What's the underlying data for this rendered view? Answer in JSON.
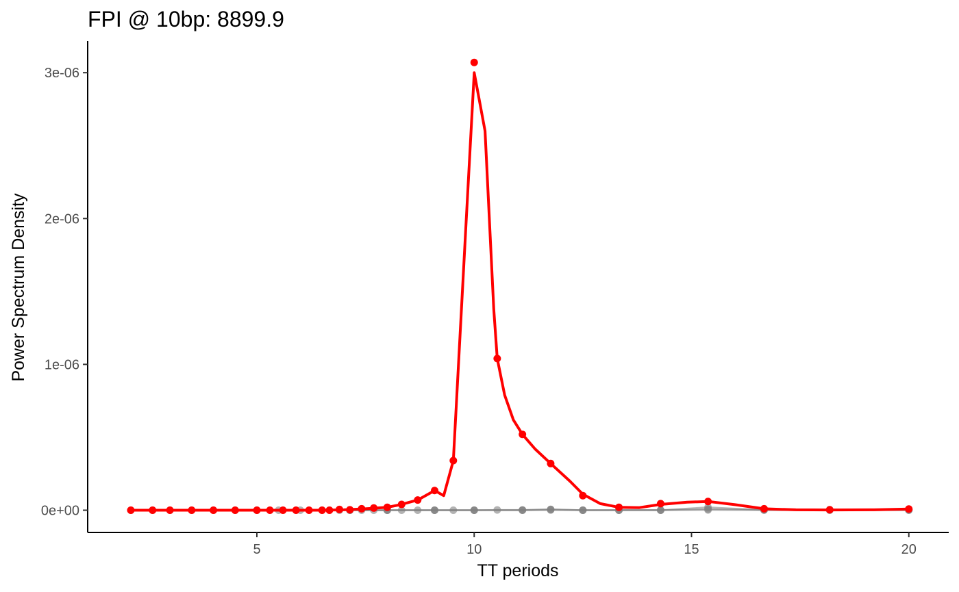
{
  "chart_data": {
    "type": "line",
    "title": "FPI @ 10bp: 8899.9",
    "xlabel": "TT periods",
    "ylabel": "Power Spectrum Density",
    "xlim": [
      1.9,
      20.9
    ],
    "ylim": [
      -1.5e-07,
      3.2e-06
    ],
    "x_ticks": [
      {
        "value": 5,
        "label": "5"
      },
      {
        "value": 10,
        "label": "10"
      },
      {
        "value": 15,
        "label": "15"
      },
      {
        "value": 20,
        "label": "20"
      }
    ],
    "y_ticks": [
      {
        "value": 0,
        "label": "0e+00"
      },
      {
        "value": 1e-06,
        "label": "1e-06"
      },
      {
        "value": 2e-06,
        "label": "2e-06"
      },
      {
        "value": 3e-06,
        "label": "3e-06"
      }
    ],
    "grid": false,
    "legend": "none",
    "colors": {
      "highlight": "#ff0000",
      "background_series": "#808080"
    },
    "series": [
      {
        "role": "highlight",
        "points": [
          [
            2.1,
            0.0
          ],
          [
            2.6,
            0.0
          ],
          [
            3.0,
            0.0
          ],
          [
            3.5,
            0.0
          ],
          [
            4.0,
            0.0
          ],
          [
            4.5,
            0.0
          ],
          [
            5.0,
            0.0
          ],
          [
            5.3,
            0.0
          ],
          [
            5.6,
            0.0
          ],
          [
            5.9,
            0.0
          ],
          [
            6.2,
            0.0
          ],
          [
            6.5,
            0.0
          ],
          [
            6.67,
            0.0
          ],
          [
            6.9,
            5e-09
          ],
          [
            7.14,
            3e-09
          ],
          [
            7.41,
            1e-08
          ],
          [
            7.69,
            1.5e-08
          ],
          [
            8.0,
            2e-08
          ],
          [
            8.33,
            4e-08
          ],
          [
            8.7,
            7e-08
          ],
          [
            9.09,
            1.35e-07
          ],
          [
            9.52,
            3.4e-07
          ],
          [
            10.0,
            3.07e-06
          ],
          [
            10.53,
            1.04e-06
          ],
          [
            11.11,
            5.2e-07
          ],
          [
            11.76,
            3.2e-07
          ],
          [
            12.5,
            1e-07
          ],
          [
            13.33,
            2e-08
          ],
          [
            14.29,
            4.5e-08
          ],
          [
            15.38,
            6e-08
          ],
          [
            16.67,
            1e-08
          ],
          [
            18.18,
            3e-09
          ],
          [
            20.0,
            8e-09
          ]
        ],
        "curve": [
          [
            2.1,
            0.0
          ],
          [
            6.5,
            0.0
          ],
          [
            7.0,
            3e-09
          ],
          [
            7.5,
            1e-08
          ],
          [
            8.0,
            2e-08
          ],
          [
            8.3,
            3.8e-08
          ],
          [
            8.7,
            7e-08
          ],
          [
            9.09,
            1.35e-07
          ],
          [
            9.3,
            1e-07
          ],
          [
            9.52,
            3.4e-07
          ],
          [
            9.8,
            1.9e-06
          ],
          [
            10.0,
            3e-06
          ],
          [
            10.25,
            2.6e-06
          ],
          [
            10.45,
            1.38e-06
          ],
          [
            10.53,
            1.04e-06
          ],
          [
            10.7,
            7.9e-07
          ],
          [
            10.9,
            6.2e-07
          ],
          [
            11.11,
            5.2e-07
          ],
          [
            11.4,
            4.2e-07
          ],
          [
            11.76,
            3.2e-07
          ],
          [
            12.2,
            2e-07
          ],
          [
            12.5,
            1.1e-07
          ],
          [
            12.9,
            4.5e-08
          ],
          [
            13.33,
            2e-08
          ],
          [
            13.8,
            1.8e-08
          ],
          [
            14.29,
            4e-08
          ],
          [
            14.9,
            5.5e-08
          ],
          [
            15.38,
            6e-08
          ],
          [
            16.0,
            3.8e-08
          ],
          [
            16.67,
            1e-08
          ],
          [
            17.4,
            3e-09
          ],
          [
            18.18,
            2e-09
          ],
          [
            19.2,
            3e-09
          ],
          [
            20.0,
            8e-09
          ]
        ]
      },
      {
        "role": "background",
        "points": [
          [
            2.1,
            0.0
          ],
          [
            2.6,
            0.0
          ],
          [
            3.0,
            0.0
          ],
          [
            3.5,
            0.0
          ],
          [
            4.0,
            0.0
          ],
          [
            4.5,
            0.0
          ],
          [
            5.0,
            0.0
          ],
          [
            5.5,
            0.0
          ],
          [
            6.0,
            0.0
          ],
          [
            6.5,
            0.0
          ],
          [
            6.9,
            0.0
          ],
          [
            7.14,
            0.0
          ],
          [
            7.41,
            0.0
          ],
          [
            7.69,
            0.0
          ],
          [
            8.0,
            0.0
          ],
          [
            8.33,
            0.0
          ],
          [
            8.7,
            0.0
          ],
          [
            9.09,
            0.0
          ],
          [
            9.52,
            0.0
          ],
          [
            10.0,
            0.0
          ],
          [
            10.53,
            2e-09
          ],
          [
            11.11,
            2e-09
          ],
          [
            11.76,
            6e-09
          ],
          [
            12.5,
            0.0
          ],
          [
            13.33,
            0.0
          ],
          [
            14.29,
            0.0
          ],
          [
            15.38,
            8e-09
          ],
          [
            16.67,
            3e-09
          ],
          [
            18.18,
            4e-09
          ],
          [
            20.0,
            3e-09
          ]
        ]
      },
      {
        "role": "background",
        "points": [
          [
            7.14,
            0.0
          ],
          [
            8.0,
            0.0
          ],
          [
            9.09,
            0.0
          ],
          [
            10.0,
            0.0
          ],
          [
            11.11,
            0.0
          ],
          [
            11.76,
            5e-09
          ],
          [
            12.5,
            0.0
          ],
          [
            13.33,
            0.0
          ],
          [
            14.29,
            1e-09
          ],
          [
            15.38,
            2e-09
          ],
          [
            16.67,
            1e-09
          ],
          [
            18.18,
            2e-09
          ],
          [
            20.0,
            0.0
          ]
        ]
      },
      {
        "role": "background",
        "points": [
          [
            7.14,
            0.0
          ],
          [
            8.0,
            0.0
          ],
          [
            9.09,
            0.0
          ],
          [
            10.0,
            0.0
          ],
          [
            11.11,
            0.0
          ],
          [
            11.76,
            1e-09
          ],
          [
            12.5,
            0.0
          ],
          [
            13.33,
            1e-09
          ],
          [
            14.29,
            0.0
          ],
          [
            15.38,
            2e-08
          ],
          [
            16.67,
            1e-09
          ],
          [
            18.18,
            0.0
          ],
          [
            20.0,
            1e-09
          ]
        ]
      }
    ]
  }
}
